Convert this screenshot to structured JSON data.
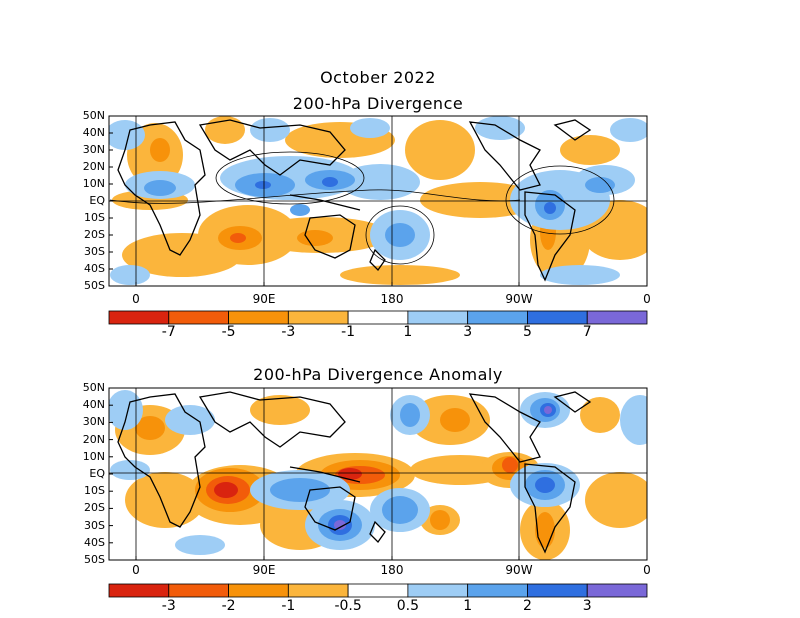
{
  "page_title": "October 2022",
  "panels": [
    {
      "title": "200-hPa Divergence",
      "lat_labels": [
        "50N",
        "40N",
        "30N",
        "20N",
        "10N",
        "EQ",
        "10S",
        "20S",
        "30S",
        "40S",
        "50S"
      ],
      "lon_labels": [
        "0",
        "90E",
        "180",
        "90W",
        "0"
      ],
      "colorbar": {
        "labels": [
          "-7",
          "-5",
          "-3",
          "-1",
          "1",
          "3",
          "5",
          "7"
        ],
        "colors": [
          "#d9240f",
          "#f25c0a",
          "#f7920a",
          "#fbb53c",
          "#ffffff",
          "#9ecdf5",
          "#5ba3ec",
          "#2f6fe0",
          "#7a68d8"
        ]
      }
    },
    {
      "title": "200-hPa Divergence Anomaly",
      "lat_labels": [
        "50N",
        "40N",
        "30N",
        "20N",
        "10N",
        "EQ",
        "10S",
        "20S",
        "30S",
        "40S",
        "50S"
      ],
      "lon_labels": [
        "0",
        "90E",
        "180",
        "90W",
        "0"
      ],
      "colorbar": {
        "labels": [
          "-3",
          "-2",
          "-1",
          "-0.5",
          "0.5",
          "1",
          "2",
          "3"
        ],
        "colors": [
          "#d9240f",
          "#f25c0a",
          "#f7920a",
          "#fbb53c",
          "#ffffff",
          "#9ecdf5",
          "#5ba3ec",
          "#2f6fe0",
          "#7a68d8"
        ]
      }
    }
  ]
}
